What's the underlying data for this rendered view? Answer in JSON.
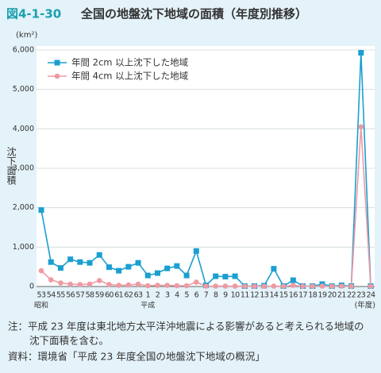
{
  "chart_data": {
    "type": "line",
    "figure_number": "図4-1-30",
    "title": "全国の地盤沈下地域の面積（年度別推移）",
    "unit": "(km²)",
    "y_label": "沈下面積",
    "x_unit": "(年度)",
    "era_labels": [
      "昭和",
      "平成"
    ],
    "categories": [
      "53",
      "54",
      "55",
      "56",
      "57",
      "58",
      "59",
      "60",
      "61",
      "62",
      "63",
      "1",
      "2",
      "3",
      "4",
      "5",
      "6",
      "7",
      "8",
      "9",
      "10",
      "11",
      "12",
      "13",
      "14",
      "15",
      "16",
      "17",
      "18",
      "19",
      "20",
      "21",
      "22",
      "23",
      "24"
    ],
    "series": [
      {
        "name": "年間 2cm 以上沈下した地域",
        "color": "#1a9fd0",
        "marker": "square",
        "values": [
          1940,
          620,
          470,
          690,
          620,
          600,
          800,
          490,
          400,
          500,
          600,
          280,
          340,
          460,
          520,
          280,
          900,
          30,
          260,
          250,
          260,
          10,
          10,
          20,
          450,
          10,
          160,
          10,
          10,
          60,
          10,
          30,
          10,
          5930,
          10
        ]
      },
      {
        "name": "年間 4cm 以上沈下した地域",
        "color": "#ef9aa3",
        "marker": "circle",
        "values": [
          400,
          170,
          90,
          60,
          50,
          60,
          150,
          50,
          30,
          40,
          60,
          20,
          30,
          30,
          20,
          20,
          110,
          10,
          10,
          10,
          10,
          5,
          5,
          5,
          10,
          5,
          30,
          5,
          5,
          10,
          5,
          10,
          5,
          4050,
          5
        ]
      }
    ],
    "ylim": [
      0,
      6000
    ],
    "yticks": [
      0,
      {
        "value": 1000,
        "label": "1,000"
      },
      {
        "value": 2000,
        "label": "2,000"
      },
      {
        "value": 3000,
        "label": "3,000"
      },
      {
        "value": 4000,
        "label": "4,000"
      },
      {
        "value": 5000,
        "label": "5,000"
      },
      {
        "value": 6000,
        "label": "6,000"
      }
    ],
    "grid": true,
    "legend": "top-left",
    "notes": [
      "注：平成 23 年度は東北地方太平洋沖地震による影響があると考えられる地域の",
      "沈下面積を含む。",
      "資料：環境省「平成 23 年度全国の地盤沈下地域の概況」"
    ]
  }
}
